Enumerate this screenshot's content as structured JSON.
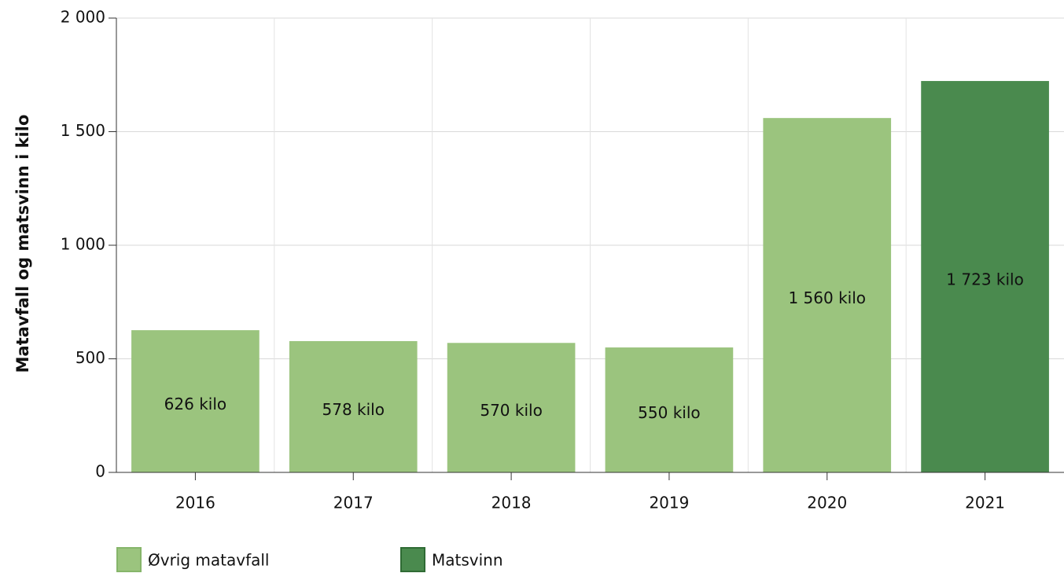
{
  "chart_data": {
    "type": "bar",
    "y_label": "Matavfall og matsvinn i kilo",
    "categories": [
      "2016",
      "2017",
      "2018",
      "2019",
      "2020",
      "2021"
    ],
    "series": [
      {
        "name": "Øvrig matavfall",
        "color": "#9bc47e",
        "values": [
          626,
          578,
          570,
          550,
          1560,
          null
        ],
        "value_labels": [
          "626 kilo",
          "578 kilo",
          "570 kilo",
          "550 kilo",
          "1 560 kilo",
          null
        ]
      },
      {
        "name": "Matsvinn",
        "color": "#4a8a4e",
        "values": [
          null,
          null,
          null,
          null,
          null,
          1723
        ],
        "value_labels": [
          null,
          null,
          null,
          null,
          null,
          "1 723 kilo"
        ]
      }
    ],
    "ylim": [
      0,
      2000
    ],
    "yticks": [
      0,
      500,
      {
        "value": 1000,
        "label": "1 000"
      },
      {
        "value": 1500,
        "label": "1 500"
      },
      {
        "value": 2000,
        "label": "2 000"
      }
    ],
    "grid": true
  }
}
